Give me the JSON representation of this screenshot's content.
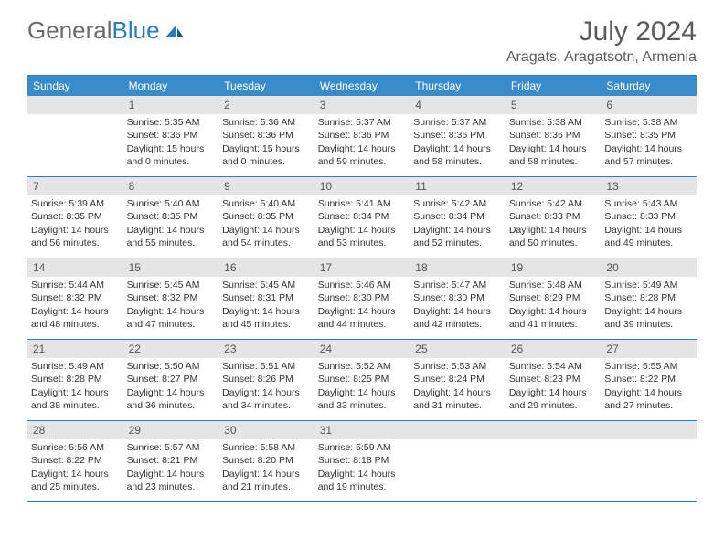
{
  "logo": {
    "text1": "General",
    "text2": "Blue"
  },
  "title": "July 2024",
  "location": "Aragats, Aragatsotn, Armenia",
  "colors": {
    "header_blue": "#3a8bca",
    "border_blue": "#2a7bbf",
    "daynum_bg": "#e5e5e5",
    "text": "#333333",
    "title_text": "#5a5a5a"
  },
  "weekdays": [
    "Sunday",
    "Monday",
    "Tuesday",
    "Wednesday",
    "Thursday",
    "Friday",
    "Saturday"
  ],
  "weeks": [
    [
      {
        "n": "",
        "sr": "",
        "ss": "",
        "dl": ""
      },
      {
        "n": "1",
        "sr": "Sunrise: 5:35 AM",
        "ss": "Sunset: 8:36 PM",
        "dl": "Daylight: 15 hours and 0 minutes."
      },
      {
        "n": "2",
        "sr": "Sunrise: 5:36 AM",
        "ss": "Sunset: 8:36 PM",
        "dl": "Daylight: 15 hours and 0 minutes."
      },
      {
        "n": "3",
        "sr": "Sunrise: 5:37 AM",
        "ss": "Sunset: 8:36 PM",
        "dl": "Daylight: 14 hours and 59 minutes."
      },
      {
        "n": "4",
        "sr": "Sunrise: 5:37 AM",
        "ss": "Sunset: 8:36 PM",
        "dl": "Daylight: 14 hours and 58 minutes."
      },
      {
        "n": "5",
        "sr": "Sunrise: 5:38 AM",
        "ss": "Sunset: 8:36 PM",
        "dl": "Daylight: 14 hours and 58 minutes."
      },
      {
        "n": "6",
        "sr": "Sunrise: 5:38 AM",
        "ss": "Sunset: 8:35 PM",
        "dl": "Daylight: 14 hours and 57 minutes."
      }
    ],
    [
      {
        "n": "7",
        "sr": "Sunrise: 5:39 AM",
        "ss": "Sunset: 8:35 PM",
        "dl": "Daylight: 14 hours and 56 minutes."
      },
      {
        "n": "8",
        "sr": "Sunrise: 5:40 AM",
        "ss": "Sunset: 8:35 PM",
        "dl": "Daylight: 14 hours and 55 minutes."
      },
      {
        "n": "9",
        "sr": "Sunrise: 5:40 AM",
        "ss": "Sunset: 8:35 PM",
        "dl": "Daylight: 14 hours and 54 minutes."
      },
      {
        "n": "10",
        "sr": "Sunrise: 5:41 AM",
        "ss": "Sunset: 8:34 PM",
        "dl": "Daylight: 14 hours and 53 minutes."
      },
      {
        "n": "11",
        "sr": "Sunrise: 5:42 AM",
        "ss": "Sunset: 8:34 PM",
        "dl": "Daylight: 14 hours and 52 minutes."
      },
      {
        "n": "12",
        "sr": "Sunrise: 5:42 AM",
        "ss": "Sunset: 8:33 PM",
        "dl": "Daylight: 14 hours and 50 minutes."
      },
      {
        "n": "13",
        "sr": "Sunrise: 5:43 AM",
        "ss": "Sunset: 8:33 PM",
        "dl": "Daylight: 14 hours and 49 minutes."
      }
    ],
    [
      {
        "n": "14",
        "sr": "Sunrise: 5:44 AM",
        "ss": "Sunset: 8:32 PM",
        "dl": "Daylight: 14 hours and 48 minutes."
      },
      {
        "n": "15",
        "sr": "Sunrise: 5:45 AM",
        "ss": "Sunset: 8:32 PM",
        "dl": "Daylight: 14 hours and 47 minutes."
      },
      {
        "n": "16",
        "sr": "Sunrise: 5:45 AM",
        "ss": "Sunset: 8:31 PM",
        "dl": "Daylight: 14 hours and 45 minutes."
      },
      {
        "n": "17",
        "sr": "Sunrise: 5:46 AM",
        "ss": "Sunset: 8:30 PM",
        "dl": "Daylight: 14 hours and 44 minutes."
      },
      {
        "n": "18",
        "sr": "Sunrise: 5:47 AM",
        "ss": "Sunset: 8:30 PM",
        "dl": "Daylight: 14 hours and 42 minutes."
      },
      {
        "n": "19",
        "sr": "Sunrise: 5:48 AM",
        "ss": "Sunset: 8:29 PM",
        "dl": "Daylight: 14 hours and 41 minutes."
      },
      {
        "n": "20",
        "sr": "Sunrise: 5:49 AM",
        "ss": "Sunset: 8:28 PM",
        "dl": "Daylight: 14 hours and 39 minutes."
      }
    ],
    [
      {
        "n": "21",
        "sr": "Sunrise: 5:49 AM",
        "ss": "Sunset: 8:28 PM",
        "dl": "Daylight: 14 hours and 38 minutes."
      },
      {
        "n": "22",
        "sr": "Sunrise: 5:50 AM",
        "ss": "Sunset: 8:27 PM",
        "dl": "Daylight: 14 hours and 36 minutes."
      },
      {
        "n": "23",
        "sr": "Sunrise: 5:51 AM",
        "ss": "Sunset: 8:26 PM",
        "dl": "Daylight: 14 hours and 34 minutes."
      },
      {
        "n": "24",
        "sr": "Sunrise: 5:52 AM",
        "ss": "Sunset: 8:25 PM",
        "dl": "Daylight: 14 hours and 33 minutes."
      },
      {
        "n": "25",
        "sr": "Sunrise: 5:53 AM",
        "ss": "Sunset: 8:24 PM",
        "dl": "Daylight: 14 hours and 31 minutes."
      },
      {
        "n": "26",
        "sr": "Sunrise: 5:54 AM",
        "ss": "Sunset: 8:23 PM",
        "dl": "Daylight: 14 hours and 29 minutes."
      },
      {
        "n": "27",
        "sr": "Sunrise: 5:55 AM",
        "ss": "Sunset: 8:22 PM",
        "dl": "Daylight: 14 hours and 27 minutes."
      }
    ],
    [
      {
        "n": "28",
        "sr": "Sunrise: 5:56 AM",
        "ss": "Sunset: 8:22 PM",
        "dl": "Daylight: 14 hours and 25 minutes."
      },
      {
        "n": "29",
        "sr": "Sunrise: 5:57 AM",
        "ss": "Sunset: 8:21 PM",
        "dl": "Daylight: 14 hours and 23 minutes."
      },
      {
        "n": "30",
        "sr": "Sunrise: 5:58 AM",
        "ss": "Sunset: 8:20 PM",
        "dl": "Daylight: 14 hours and 21 minutes."
      },
      {
        "n": "31",
        "sr": "Sunrise: 5:59 AM",
        "ss": "Sunset: 8:18 PM",
        "dl": "Daylight: 14 hours and 19 minutes."
      },
      {
        "n": "",
        "sr": "",
        "ss": "",
        "dl": ""
      },
      {
        "n": "",
        "sr": "",
        "ss": "",
        "dl": ""
      },
      {
        "n": "",
        "sr": "",
        "ss": "",
        "dl": ""
      }
    ]
  ]
}
